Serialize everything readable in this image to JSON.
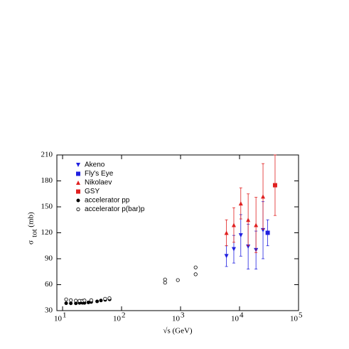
{
  "chart_data": {
    "type": "scatter",
    "xlabel": "√s  (GeV)",
    "ylabel": {
      "symbol": "σ",
      "subscript": "tot",
      "unit": "(mb)"
    },
    "xscale": "log",
    "xlim": [
      8,
      100000
    ],
    "ylim": [
      30,
      210
    ],
    "xticks": [
      {
        "value": 10,
        "label": "10",
        "exponent": "1"
      },
      {
        "value": 100,
        "label": "10",
        "exponent": "2"
      },
      {
        "value": 1000,
        "label": "10",
        "exponent": "3"
      },
      {
        "value": 10000,
        "label": "10",
        "exponent": "4"
      },
      {
        "value": 100000,
        "label": "10",
        "exponent": "5"
      }
    ],
    "yticks": [
      30,
      60,
      90,
      120,
      150,
      180,
      210
    ],
    "legend": "upper left",
    "series": [
      {
        "name": "Akeno",
        "color": "#2020e0",
        "marker": "triangle-down",
        "x": [
          6000,
          8000,
          10500,
          14000,
          19000,
          25000
        ],
        "values": [
          93,
          101,
          117,
          104,
          100,
          123
        ],
        "errors": [
          12,
          16,
          24,
          26,
          22,
          33
        ]
      },
      {
        "name": "Fly's Eye",
        "color": "#2020e0",
        "marker": "square",
        "x": [
          30000
        ],
        "values": [
          120
        ],
        "errors": [
          15
        ]
      },
      {
        "name": "Nikolaev",
        "color": "#e02020",
        "marker": "triangle-up",
        "x": [
          6000,
          8000,
          10500,
          14000,
          19000,
          25000
        ],
        "values": [
          120,
          129,
          154,
          135,
          129,
          162
        ],
        "errors": [
          15,
          20,
          18,
          30,
          32,
          38
        ]
      },
      {
        "name": "GSY",
        "color": "#e02020",
        "marker": "square",
        "x": [
          40000
        ],
        "values": [
          175
        ],
        "errors": [
          35
        ]
      },
      {
        "name": "accelerator pp",
        "color": "#000000",
        "marker": "circle",
        "x": [
          11.5,
          13.8,
          16.8,
          19.4,
          21.7,
          23.5,
          27.4,
          30.6,
          38.5,
          44.7,
          52.8,
          62.7
        ],
        "values": [
          38.5,
          38.4,
          38.4,
          38.9,
          39,
          38.9,
          39.5,
          40,
          40.7,
          41.7,
          42.4,
          43
        ]
      },
      {
        "name": "accelerator p(bar)p",
        "color": "#000000",
        "marker": "open-circle",
        "x": [
          11.5,
          13.8,
          16.8,
          19.4,
          21.7,
          23.5,
          30.6,
          52.6,
          62.3,
          546,
          546,
          900,
          1800,
          1800
        ],
        "values": [
          43,
          42,
          41.5,
          41.3,
          41.3,
          41.7,
          42,
          43.7,
          44.3,
          62.3,
          66,
          65.3,
          72,
          80
        ]
      }
    ]
  }
}
